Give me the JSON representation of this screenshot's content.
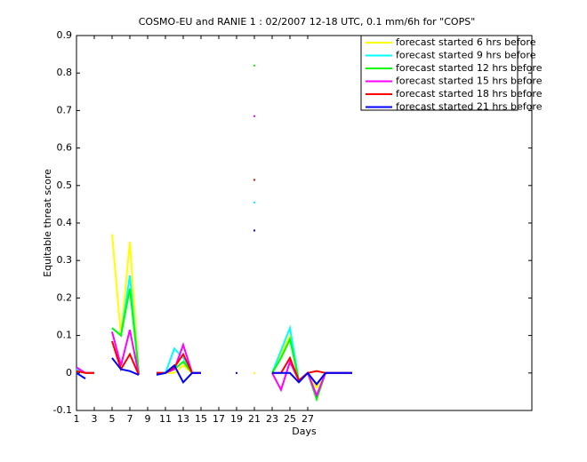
{
  "chart_data": {
    "type": "line",
    "title": "COSMO-EU and RANIE 1 : 02/2007 12-18 UTC, 0.1 mm/6h for \"COPS\"",
    "x_label": "Days",
    "y_label": "Equitable threat score",
    "x": [
      1,
      2,
      3,
      4,
      5,
      6,
      7,
      8,
      9,
      10,
      11,
      12,
      13,
      14,
      15,
      16,
      17,
      18,
      19,
      20,
      21,
      22,
      23,
      24,
      25,
      26,
      27,
      28,
      29,
      30,
      31,
      32
    ],
    "series": [
      {
        "name": "forecast started 6 hrs before",
        "color": "#ffff00",
        "values": [
          0.01,
          0,
          0,
          null,
          0.37,
          0.1,
          0.35,
          0,
          null,
          0,
          0,
          0,
          0.02,
          0,
          0,
          null,
          null,
          null,
          null,
          null,
          0,
          null,
          0,
          0.05,
          0.1,
          -0.02,
          0,
          -0.04,
          0,
          0,
          0,
          0
        ]
      },
      {
        "name": "forecast started 9 hrs before",
        "color": "#00ffff",
        "values": [
          0.01,
          0,
          0,
          null,
          0.12,
          0.1,
          0.26,
          0,
          null,
          0,
          0,
          0.065,
          0.04,
          0,
          0,
          null,
          null,
          null,
          null,
          null,
          0.455,
          null,
          0,
          0.06,
          0.12,
          -0.02,
          0,
          -0.03,
          0,
          0,
          0,
          0
        ]
      },
      {
        "name": "forecast started 12 hrs before",
        "color": "#00ff00",
        "values": [
          0.005,
          0,
          0,
          null,
          0.12,
          0.1,
          0.225,
          0,
          null,
          0,
          0,
          0.01,
          0.03,
          0,
          0,
          null,
          null,
          null,
          null,
          null,
          0.82,
          null,
          0,
          0.04,
          0.09,
          -0.02,
          0,
          -0.07,
          0,
          0,
          0,
          0
        ]
      },
      {
        "name": "forecast started 15 hrs before",
        "color": "#ff00ff",
        "values": [
          0.015,
          0,
          0,
          null,
          0.11,
          0.02,
          0.115,
          -0.005,
          null,
          0,
          0,
          0.01,
          0.075,
          0,
          0,
          null,
          null,
          null,
          null,
          null,
          0.685,
          null,
          0,
          -0.045,
          0.03,
          -0.02,
          0,
          -0.06,
          0,
          0,
          0,
          0
        ]
      },
      {
        "name": "forecast started 18 hrs before",
        "color": "#ff0000",
        "values": [
          0.005,
          0,
          0,
          null,
          0.085,
          0.01,
          0.05,
          -0.005,
          null,
          0,
          0,
          0.015,
          0.05,
          0,
          0,
          null,
          null,
          null,
          null,
          null,
          0.515,
          null,
          0,
          0,
          0.04,
          -0.02,
          0,
          0.005,
          0,
          0,
          0,
          0
        ]
      },
      {
        "name": "forecast started 21 hrs before",
        "color": "#0000ff",
        "values": [
          0,
          -0.015,
          null,
          null,
          0.04,
          0.01,
          0.005,
          -0.005,
          null,
          -0.005,
          0,
          0.02,
          -0.025,
          0,
          0,
          null,
          null,
          null,
          0,
          null,
          0.38,
          null,
          0,
          0,
          0,
          -0.025,
          0,
          -0.03,
          0,
          0,
          0,
          0
        ]
      }
    ],
    "xlim": [
      1,
      52.2
    ],
    "ylim": [
      -0.1,
      0.9
    ],
    "xticks": [
      1,
      3,
      5,
      7,
      9,
      11,
      13,
      15,
      17,
      19,
      21,
      23,
      25,
      27
    ],
    "yticks": [
      -0.1,
      0,
      0.1,
      0.2,
      0.3,
      0.4,
      0.5,
      0.6,
      0.7,
      0.8,
      0.9
    ],
    "legend": "top-right"
  }
}
